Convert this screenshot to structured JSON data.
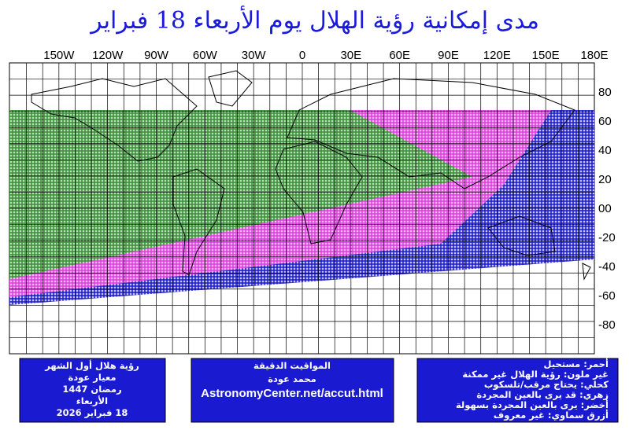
{
  "title": "مدى إمكانية رؤية الهلال يوم الأربعاء 18 فبراير",
  "map": {
    "lon_labels": [
      "150W",
      "120W",
      "90W",
      "60W",
      "30W",
      "0",
      "30E",
      "60E",
      "90E",
      "120E",
      "150E",
      "180E"
    ],
    "lat_labels": [
      "80",
      "60",
      "40",
      "20",
      "00",
      "-20",
      "-40",
      "-60",
      "-80"
    ]
  },
  "info_left": [
    "رؤية هلال أول الشهر",
    "معيار عودة",
    "رمضان 1447",
    "الأربعاء",
    "18 فبراير 2026"
  ],
  "info_middle": [
    "المواقيت الدقيقة",
    "محمد عودة",
    "AstronomyCenter.net/accut.html"
  ],
  "legend": [
    "أحمر: مستحيل",
    "غير ملون: رؤية الهلال غير ممكنة",
    "كحلي: يحتاج مرقب/تلسكوب",
    "زهري: قد يرى بالعين المجردة",
    "أخضر: يرى بالعين المجردة بسهولة",
    "أزرق سماوي: غير معروف"
  ]
}
